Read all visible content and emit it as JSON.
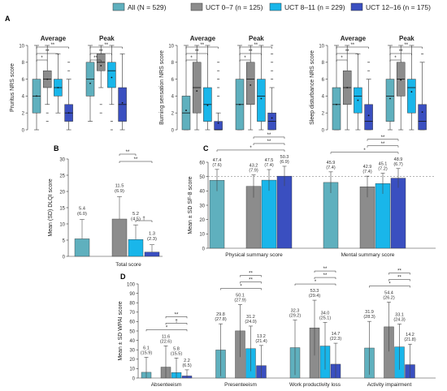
{
  "colors": {
    "all": "#5fb0be",
    "uct0": "#8c8c8c",
    "uct8": "#19b6ea",
    "uct12": "#3a4fc0"
  },
  "legend": [
    {
      "key": "all",
      "label": "All (N = 529)"
    },
    {
      "key": "uct0",
      "label": "UCT 0–7 (n = 125)"
    },
    {
      "key": "uct8",
      "label": "UCT 8–11 (n = 229)"
    },
    {
      "key": "uct12",
      "label": "UCT 12–16 (n = 175)"
    }
  ],
  "chart_data": [
    {
      "panel": "A",
      "type": "box",
      "ylabel": "Pruritus NRS score",
      "ylim": [
        0,
        10
      ],
      "yticks": [
        0,
        2,
        4,
        6,
        8,
        10
      ],
      "groups": [
        "Average",
        "Peak"
      ],
      "series": [
        "all",
        "uct0",
        "uct8",
        "uct12"
      ],
      "boxes": [
        [
          {
            "min": 0,
            "q1": 2,
            "med": 4,
            "q3": 6,
            "max": 10,
            "mean": 4
          },
          {
            "min": 3,
            "q1": 5,
            "med": 6,
            "q3": 7,
            "max": 10,
            "mean": 6
          },
          {
            "min": 2,
            "q1": 4,
            "med": 5,
            "q3": 6,
            "max": 9,
            "mean": 5
          },
          {
            "min": 0,
            "q1": 1,
            "med": 2,
            "q3": 3,
            "max": 6,
            "mean": 2
          }
        ],
        [
          {
            "min": 1,
            "q1": 4,
            "med": 6,
            "q3": 8,
            "max": 10,
            "mean": 5.5
          },
          {
            "min": 5,
            "q1": 7,
            "med": 8,
            "q3": 9,
            "max": 10,
            "mean": 7.6
          },
          {
            "min": 3,
            "q1": 5,
            "med": 7,
            "q3": 8,
            "max": 10,
            "mean": 6.2
          },
          {
            "min": 0,
            "q1": 1,
            "med": 3,
            "q3": 5,
            "max": 9,
            "mean": 3.2
          }
        ]
      ],
      "outliers": [
        [
          [],
          [
            1,
            2
          ],
          [],
          [
            7,
            8
          ]
        ],
        [
          [],
          [
            2,
            3
          ],
          [
            0,
            1
          ],
          []
        ]
      ],
      "sig": [
        [
          "*",
          "**",
          "**"
        ],
        [
          "**",
          "**",
          "**"
        ]
      ]
    },
    {
      "panel": "A",
      "type": "box",
      "ylabel": "Burning sensation NRS score",
      "ylim": [
        0,
        10
      ],
      "yticks": [
        0,
        2,
        4,
        6,
        8,
        10
      ],
      "groups": [
        "Average",
        "Peak"
      ],
      "series": [
        "all",
        "uct0",
        "uct8",
        "uct12"
      ],
      "boxes": [
        [
          {
            "min": 0,
            "q1": 0,
            "med": 2,
            "q3": 4,
            "max": 10,
            "mean": 2.3
          },
          {
            "min": 0,
            "q1": 2,
            "med": 5,
            "q3": 8,
            "max": 10,
            "mean": 4.6
          },
          {
            "min": 0,
            "q1": 1,
            "med": 3,
            "q3": 5,
            "max": 10,
            "mean": 2.9
          },
          {
            "min": 0,
            "q1": 0,
            "med": 0,
            "q3": 1,
            "max": 2,
            "mean": 0.8
          }
        ],
        [
          {
            "min": 0,
            "q1": 0,
            "med": 3,
            "q3": 6,
            "max": 10,
            "mean": 3
          },
          {
            "min": 0,
            "q1": 3,
            "med": 6,
            "q3": 8,
            "max": 10,
            "mean": 5.3
          },
          {
            "min": 0,
            "q1": 1,
            "med": 4,
            "q3": 6,
            "max": 10,
            "mean": 3.7
          },
          {
            "min": 0,
            "q1": 0,
            "med": 1,
            "q3": 2,
            "max": 5,
            "mean": 1.4
          }
        ]
      ],
      "outliers": [
        [
          [],
          [],
          [],
          [
            4,
            5,
            6,
            7,
            8
          ]
        ],
        [
          [],
          [],
          [],
          [
            6,
            7,
            8,
            9,
            10
          ]
        ]
      ],
      "sig": [
        [
          "*",
          "**",
          "**"
        ],
        [
          "*",
          "**",
          "**"
        ]
      ]
    },
    {
      "panel": "A",
      "type": "box",
      "ylabel": "Sleep disturbance NRS score",
      "ylim": [
        0,
        10
      ],
      "yticks": [
        0,
        2,
        4,
        6,
        8,
        10
      ],
      "groups": [
        "Average",
        "Peak"
      ],
      "series": [
        "all",
        "uct0",
        "uct8",
        "uct12"
      ],
      "boxes": [
        [
          {
            "min": 0,
            "q1": 0,
            "med": 3,
            "q3": 5,
            "max": 10,
            "mean": 3
          },
          {
            "min": 0,
            "q1": 3,
            "med": 5,
            "q3": 7,
            "max": 10,
            "mean": 5
          },
          {
            "min": 0,
            "q1": 2,
            "med": 4,
            "q3": 5,
            "max": 9,
            "mean": 3.5
          },
          {
            "min": 0,
            "q1": 0,
            "med": 1,
            "q3": 3,
            "max": 6,
            "mean": 1.7
          }
        ],
        [
          {
            "min": 0,
            "q1": 1,
            "med": 4,
            "q3": 6,
            "max": 10,
            "mean": 3.7
          },
          {
            "min": 0,
            "q1": 4,
            "med": 6,
            "q3": 8,
            "max": 10,
            "mean": 5.9
          },
          {
            "min": 0,
            "q1": 2,
            "med": 5,
            "q3": 6,
            "max": 10,
            "mean": 4.5
          },
          {
            "min": 0,
            "q1": 0,
            "med": 1,
            "q3": 3,
            "max": 8,
            "mean": 2.1
          }
        ]
      ],
      "outliers": [
        [
          [],
          [],
          [],
          [
            7,
            8
          ]
        ],
        [
          [],
          [],
          [],
          [
            9
          ]
        ]
      ],
      "sig": [
        [
          "*",
          "**",
          "**"
        ],
        [
          "*",
          "**",
          "**"
        ]
      ]
    },
    {
      "panel": "B",
      "type": "bar",
      "ylabel": "Mean (SD) DLQI score",
      "ylim": [
        0,
        30
      ],
      "yticks": [
        0,
        5,
        10,
        15,
        20,
        25,
        30
      ],
      "categories": [
        "Total score"
      ],
      "series": [
        "all",
        "uct0",
        "uct8",
        "uct12"
      ],
      "values": [
        5.4,
        11.5,
        5.2,
        1.3
      ],
      "sd": [
        6.0,
        6.9,
        4.5,
        2.3
      ],
      "labels": [
        "5.4\n(6.0)",
        "11.5\n(6.9)",
        "5.2\n(4.5)",
        "1.3\n(2.3)"
      ],
      "sig": [
        "**",
        "**",
        "†"
      ]
    },
    {
      "panel": "C",
      "type": "bar",
      "ylabel": "Mean ± SD SF-8 score",
      "ylim": [
        0,
        60
      ],
      "yticks": [
        0,
        10,
        20,
        30,
        40,
        50,
        60
      ],
      "reference_line": 50,
      "categories": [
        "Physical summary score",
        "Mental summary score"
      ],
      "series": [
        "all",
        "uct0",
        "uct8",
        "uct12"
      ],
      "values": [
        [
          47.4,
          43.2,
          47.5,
          50.3
        ],
        [
          45.9,
          42.9,
          45.1,
          48.9
        ]
      ],
      "sd": [
        [
          7.6,
          7.9,
          7.4,
          6.9
        ],
        [
          7.4,
          7.4,
          7.2,
          6.7
        ]
      ],
      "labels": [
        [
          "47.4\n(7.6)",
          "43.2\n(7.9)",
          "47.5\n(7.4)",
          "50.3\n(6.9)"
        ],
        [
          "45.9\n(7.4)",
          "42.9\n(7.4)",
          "45.1\n(7.2)",
          "48.9\n(6.7)"
        ]
      ],
      "sig": [
        [
          "*",
          "**",
          "**"
        ],
        [
          "*",
          "**",
          "**"
        ]
      ]
    },
    {
      "panel": "D",
      "type": "bar",
      "ylabel": "Mean ± SD WPAI score",
      "ylim": [
        0,
        100
      ],
      "yticks": [
        0,
        10,
        20,
        30,
        40,
        50,
        60,
        70,
        80,
        90,
        100
      ],
      "categories": [
        "Absenteeism",
        "Presenteeism",
        "Work productivity loss",
        "Activity impairment"
      ],
      "series": [
        "all",
        "uct0",
        "uct8",
        "uct12"
      ],
      "values": [
        [
          6.1,
          11.6,
          5.8,
          2.2
        ],
        [
          29.8,
          50.1,
          31.2,
          13.2
        ],
        [
          32.3,
          53.3,
          34.0,
          14.7
        ],
        [
          31.9,
          54.4,
          33.1,
          14.2
        ]
      ],
      "sd": [
        [
          15.9,
          22.6,
          15.5,
          6.5
        ],
        [
          27.8,
          27.9,
          24.0,
          21.4
        ],
        [
          29.2,
          29.4,
          25.1,
          22.3
        ],
        [
          28.3,
          26.2,
          24.3,
          21.8
        ]
      ],
      "labels": [
        [
          "6.1\n(15.9)",
          "11.6\n(22.6)",
          "5.8\n(15.5)",
          "2.2\n(6.5)"
        ],
        [
          "29.8\n(27.8)",
          "50.1\n(27.9)",
          "31.2\n(24.0)",
          "13.2\n(21.4)"
        ],
        [
          "32.3\n(29.2)",
          "53.3\n(29.4)",
          "34.0\n(25.1)",
          "14.7\n(22.3)"
        ],
        [
          "31.9\n(28.3)",
          "54.4\n(26.2)",
          "33.1\n(24.3)",
          "14.2\n(21.8)"
        ]
      ],
      "sig": [
        [
          "*",
          "†",
          "**"
        ],
        [
          "*",
          "**",
          "**"
        ],
        [
          "*",
          "**",
          "**"
        ],
        [
          "*",
          "**",
          "**"
        ]
      ]
    }
  ]
}
